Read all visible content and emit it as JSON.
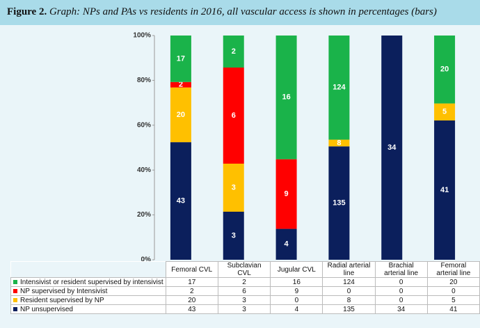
{
  "chart_data": {
    "type": "bar",
    "stacked": "percent",
    "title_label": "Figure 2.",
    "title": "Graph: NPs and PAs vs residents in 2016, all vascular access is shown in percentages (bars)",
    "categories": [
      "Femoral CVL",
      "Subclavian CVL",
      "Jugular CVL",
      "Radial arterial line",
      "Brachial arterial line",
      "Femoral arterial line"
    ],
    "series": [
      {
        "name": "NP unsupervised",
        "color": "#0b1f5c",
        "values": [
          43,
          3,
          4,
          135,
          34,
          41
        ]
      },
      {
        "name": "Resident supervised by NP",
        "color": "#ffc000",
        "values": [
          20,
          3,
          0,
          8,
          0,
          5
        ]
      },
      {
        "name": "NP supervised by Intensivist",
        "color": "#ff0000",
        "values": [
          2,
          6,
          9,
          0,
          0,
          0
        ]
      },
      {
        "name": "Intensivist or resident supervised by intensivist",
        "color": "#1ab34a",
        "values": [
          17,
          2,
          16,
          124,
          0,
          20
        ]
      }
    ],
    "ylim": [
      0,
      100
    ],
    "yticks": [
      {
        "value": 0,
        "label": "0%"
      },
      {
        "value": 20,
        "label": "20%"
      },
      {
        "value": 40,
        "label": "40%"
      },
      {
        "value": 60,
        "label": "60%"
      },
      {
        "value": 80,
        "label": "80%"
      },
      {
        "value": 100,
        "label": "100%"
      }
    ],
    "grid": false
  }
}
